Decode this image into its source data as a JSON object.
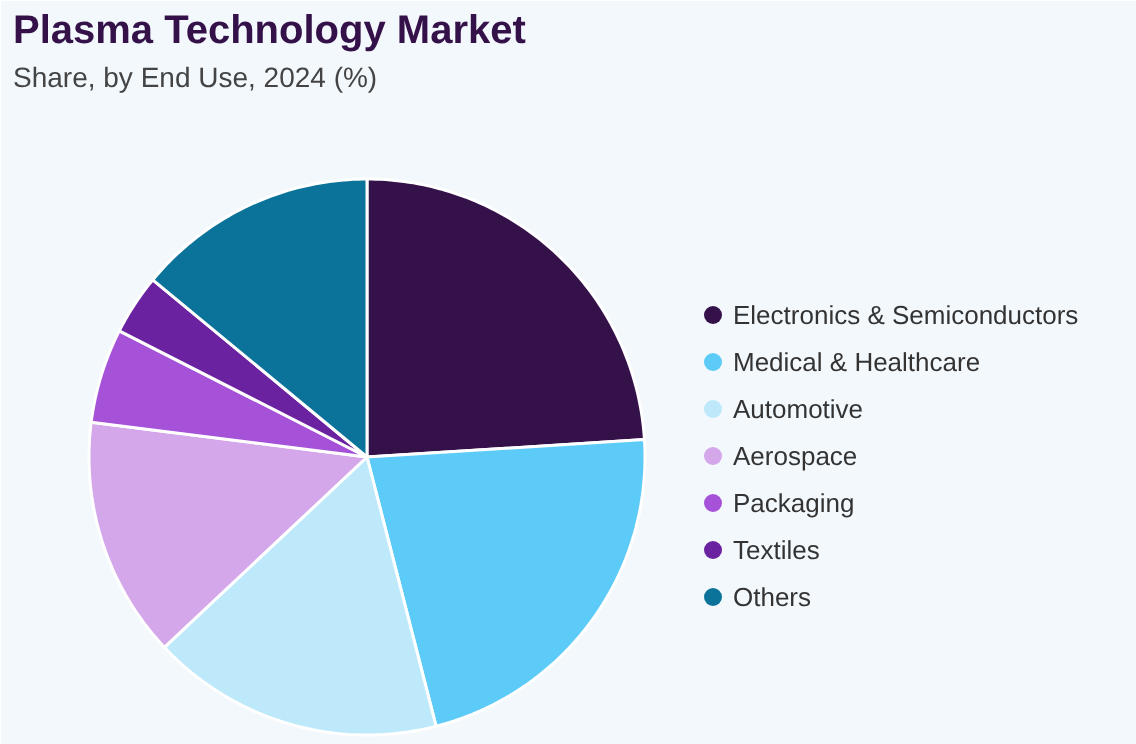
{
  "chart_data": {
    "type": "pie",
    "title": "Plasma Technology Market",
    "subtitle": "Share, by End Use, 2024 (%)",
    "categories": [
      "Electronics & Semiconductors",
      "Medical & Healthcare",
      "Automotive",
      "Aerospace",
      "Packaging",
      "Textiles",
      "Others"
    ],
    "values": [
      24,
      22,
      17,
      14,
      5.5,
      3.5,
      14
    ],
    "colors": [
      "#35114a",
      "#5ccbf7",
      "#bde9fb",
      "#d4a6ea",
      "#a552d8",
      "#6b22a0",
      "#0b7399"
    ],
    "legend": "right"
  }
}
